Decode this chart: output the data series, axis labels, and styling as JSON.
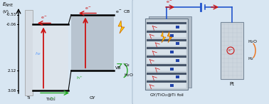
{
  "bg_color": "#ccd9eb",
  "left_bg": "#d8e6f2",
  "right_bg": "#d8e6f2",
  "y_ticks": [
    -0.53,
    -0.06,
    2.12,
    3.08
  ],
  "y_tick_labels": [
    "-0.53",
    "-0.06",
    "2.12",
    "3.08"
  ],
  "tio2_cb": -0.06,
  "tio2_vb": 3.08,
  "gy_cb": -0.53,
  "gy_vb": 2.12,
  "e_min": 3.3,
  "e_max": -0.75,
  "red": "#cc1111",
  "green": "#22aa22",
  "blue_wire": "#2255cc",
  "orange": "#ff8800",
  "dark_gray": "#1a2540",
  "ti_fc": "#d5dce4",
  "tio2_fc": "#dce4ec",
  "gy_fc": "#b8c4d0",
  "pt_fc": "#d0d8e0"
}
